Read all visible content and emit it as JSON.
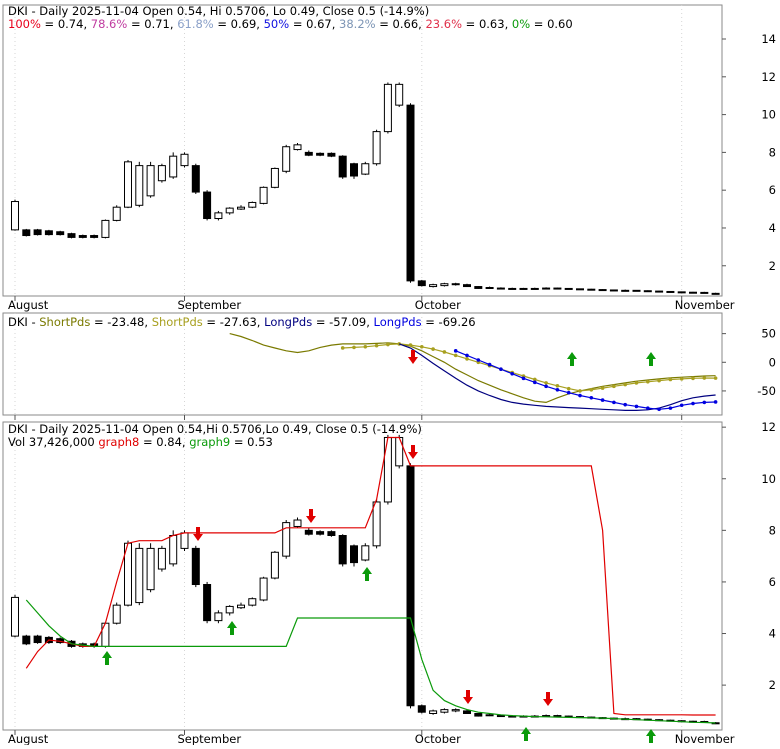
{
  "chart_data": {
    "type": "candlestick",
    "header": "DKI - Daily 2025-11-04 Open 0.54, Hi 0.5706, Lo 0.49, Close 0.5 (-14.9%)",
    "fib_header": [
      {
        "text": "100%",
        "color": "#e8001c"
      },
      {
        "text": " = 0.74, "
      },
      {
        "text": "78.6%",
        "color": "#c03ca0"
      },
      {
        "text": " = 0.71, "
      },
      {
        "text": "61.8%",
        "color": "#8aa0c8"
      },
      {
        "text": " = 0.69, "
      },
      {
        "text": "50%",
        "color": "#1010e0"
      },
      {
        "text": " = 0.67, "
      },
      {
        "text": "38.2%",
        "color": "#7d95b5"
      },
      {
        "text": " = 0.66, "
      },
      {
        "text": "23.6%",
        "color": "#e0304a"
      },
      {
        "text": " = 0.63, "
      },
      {
        "text": "0%",
        "color": "#0a9a0a"
      },
      {
        "text": " = 0.60"
      }
    ],
    "categories": [
      "August",
      null,
      null,
      null,
      null,
      null,
      null,
      null,
      null,
      null,
      null,
      null,
      null,
      null,
      null,
      "September",
      null,
      null,
      null,
      null,
      null,
      null,
      null,
      null,
      null,
      null,
      null,
      null,
      null,
      null,
      null,
      null,
      null,
      null,
      null,
      null,
      "October",
      null,
      null,
      null,
      null,
      null,
      null,
      null,
      null,
      null,
      null,
      null,
      null,
      null,
      null,
      null,
      null,
      null,
      null,
      null,
      null,
      null,
      null,
      "November",
      null,
      null,
      null
    ],
    "open": [
      3.9,
      3.9,
      3.9,
      3.85,
      3.8,
      3.7,
      3.6,
      3.6,
      3.5,
      4.4,
      5.1,
      5.2,
      5.7,
      6.5,
      6.7,
      7.3,
      7.3,
      5.9,
      4.5,
      4.8,
      5.0,
      5.1,
      5.3,
      6.15,
      7.0,
      8.15,
      8.0,
      7.95,
      7.95,
      7.8,
      7.4,
      6.85,
      7.4,
      9.1,
      10.5,
      10.5,
      1.2,
      0.9,
      0.95,
      1.0,
      1.0,
      0.9,
      0.85,
      0.82,
      0.8,
      0.8,
      0.78,
      0.8,
      0.82,
      0.8,
      0.78,
      0.76,
      0.74,
      0.72,
      0.7,
      0.7,
      0.68,
      0.66,
      0.64,
      0.62,
      0.6,
      0.58,
      0.54
    ],
    "high": [
      5.5,
      3.95,
      3.95,
      3.9,
      3.85,
      3.75,
      3.65,
      3.65,
      4.45,
      5.2,
      7.6,
      7.5,
      7.5,
      7.4,
      8.0,
      8.0,
      7.4,
      6.0,
      4.9,
      5.1,
      5.2,
      5.4,
      6.2,
      7.2,
      8.4,
      8.5,
      8.1,
      8.0,
      8.0,
      7.85,
      7.45,
      7.5,
      9.2,
      11.7,
      11.7,
      10.6,
      1.25,
      1.05,
      1.1,
      1.1,
      1.05,
      0.92,
      0.9,
      0.86,
      0.84,
      0.83,
      0.84,
      0.86,
      0.85,
      0.82,
      0.8,
      0.78,
      0.76,
      0.74,
      0.74,
      0.72,
      0.7,
      0.68,
      0.66,
      0.64,
      0.62,
      0.62,
      0.5706
    ],
    "low": [
      3.85,
      3.55,
      3.6,
      3.6,
      3.6,
      3.45,
      3.45,
      3.45,
      3.45,
      4.35,
      5.05,
      5.1,
      5.6,
      6.4,
      6.6,
      7.2,
      5.8,
      4.4,
      4.4,
      4.7,
      4.95,
      5.05,
      5.25,
      6.1,
      6.9,
      8.1,
      7.8,
      7.8,
      7.75,
      6.6,
      6.6,
      6.8,
      7.3,
      9.0,
      10.4,
      1.1,
      0.9,
      0.85,
      0.9,
      0.95,
      0.88,
      0.78,
      0.8,
      0.78,
      0.76,
      0.76,
      0.76,
      0.78,
      0.78,
      0.76,
      0.74,
      0.72,
      0.7,
      0.68,
      0.68,
      0.66,
      0.64,
      0.62,
      0.6,
      0.58,
      0.56,
      0.56,
      0.49
    ],
    "close": [
      5.4,
      3.6,
      3.65,
      3.65,
      3.65,
      3.5,
      3.5,
      3.5,
      4.4,
      5.1,
      7.5,
      7.3,
      7.3,
      7.3,
      7.8,
      7.9,
      5.9,
      4.5,
      4.8,
      5.05,
      5.1,
      5.35,
      6.15,
      7.15,
      8.3,
      8.4,
      7.85,
      7.85,
      7.8,
      6.7,
      6.75,
      7.4,
      9.1,
      11.6,
      11.6,
      1.2,
      0.95,
      1.0,
      1.05,
      1.05,
      0.9,
      0.8,
      0.82,
      0.8,
      0.8,
      0.78,
      0.8,
      0.82,
      0.8,
      0.78,
      0.76,
      0.74,
      0.72,
      0.7,
      0.7,
      0.68,
      0.66,
      0.64,
      0.62,
      0.6,
      0.58,
      0.59,
      0.5
    ],
    "ylim": [
      0.4,
      15.8
    ],
    "yticks": [
      2,
      4,
      6,
      8,
      10,
      12,
      14
    ],
    "indicator": {
      "type": "line",
      "header": [
        {
          "text": "DKI - "
        },
        {
          "text": "ShortPds",
          "color": "#7a7a00"
        },
        {
          "text": " = -23.48, "
        },
        {
          "text": "ShortPds",
          "color": "#a8a020"
        },
        {
          "text": " = -27.63, "
        },
        {
          "text": "LongPds",
          "color": "#000080"
        },
        {
          "text": " = -57.09, "
        },
        {
          "text": "LongPds",
          "color": "#0000e0"
        },
        {
          "text": " = -69.26"
        }
      ],
      "ylim": [
        -92,
        86
      ],
      "yticks": [
        50,
        0,
        -50
      ],
      "series": [
        {
          "color": "#7a7a00",
          "style": "solid",
          "values": [
            null,
            null,
            null,
            null,
            null,
            null,
            null,
            null,
            null,
            null,
            null,
            null,
            null,
            null,
            null,
            null,
            null,
            null,
            null,
            50,
            45,
            38,
            30,
            25,
            20,
            17,
            20,
            26,
            30,
            32,
            32,
            32,
            33,
            34,
            32,
            28,
            20,
            10,
            0,
            -12,
            -22,
            -32,
            -40,
            -48,
            -55,
            -62,
            -68,
            -70,
            -62,
            -55,
            -50,
            -46,
            -42,
            -39,
            -36,
            -33,
            -31,
            -29,
            -27,
            -26,
            -25,
            -24,
            -23.48
          ]
        },
        {
          "color": "#a8a020",
          "style": "dotted",
          "values": [
            null,
            null,
            null,
            null,
            null,
            null,
            null,
            null,
            null,
            null,
            null,
            null,
            null,
            null,
            null,
            null,
            null,
            null,
            null,
            null,
            null,
            null,
            null,
            null,
            null,
            null,
            null,
            null,
            null,
            25,
            26,
            27,
            29,
            31,
            32,
            30,
            27,
            23,
            18,
            12,
            6,
            0,
            -6,
            -12,
            -18,
            -24,
            -30,
            -36,
            -41,
            -46,
            -50,
            -48,
            -45,
            -42,
            -39,
            -36,
            -34,
            -32,
            -30,
            -29,
            -28,
            -27.5,
            -27.63
          ]
        },
        {
          "color": "#000080",
          "style": "solid",
          "values": [
            null,
            null,
            null,
            null,
            null,
            null,
            null,
            null,
            null,
            null,
            null,
            null,
            null,
            null,
            null,
            null,
            null,
            null,
            null,
            null,
            null,
            null,
            null,
            null,
            null,
            null,
            null,
            null,
            null,
            null,
            null,
            null,
            null,
            null,
            32,
            25,
            12,
            -2,
            -15,
            -28,
            -40,
            -50,
            -58,
            -65,
            -70,
            -73,
            -75,
            -77,
            -78,
            -79,
            -80,
            -81,
            -82,
            -83,
            -84,
            -84,
            -83,
            -80,
            -74,
            -67,
            -62,
            -59,
            -57.09
          ]
        },
        {
          "color": "#0000e0",
          "style": "dotted",
          "values": [
            null,
            null,
            null,
            null,
            null,
            null,
            null,
            null,
            null,
            null,
            null,
            null,
            null,
            null,
            null,
            null,
            null,
            null,
            null,
            null,
            null,
            null,
            null,
            null,
            null,
            null,
            null,
            null,
            null,
            null,
            null,
            null,
            null,
            null,
            null,
            null,
            null,
            null,
            null,
            20,
            12,
            4,
            -4,
            -12,
            -20,
            -28,
            -35,
            -42,
            -48,
            -53,
            -58,
            -62,
            -66,
            -70,
            -74,
            -77,
            -80,
            -82,
            -80,
            -75,
            -72,
            -70,
            -69.26
          ]
        }
      ]
    },
    "signal": {
      "type": "candlestick",
      "header": "DKI - Daily 2025-11-04 Open 0.54,Hi 0.5706,Lo 0.49, Close 0.5 (-14.9%)",
      "subheader": [
        {
          "text": "Vol 37,426,000 "
        },
        {
          "text": "graph8",
          "color": "#e00000"
        },
        {
          "text": " = 0.84, "
        },
        {
          "text": "graph9",
          "color": "#0a9a0a"
        },
        {
          "text": " = 0.53"
        }
      ],
      "ylim": [
        0.26,
        12.2
      ],
      "yticks": [
        2,
        4,
        6,
        8,
        10,
        12
      ],
      "series": [
        {
          "color": "#e00000",
          "values": [
            null,
            2.65,
            3.3,
            3.75,
            3.7,
            3.6,
            3.5,
            3.5,
            4.4,
            6.0,
            7.5,
            7.6,
            7.6,
            7.6,
            7.8,
            7.9,
            7.9,
            7.9,
            7.9,
            7.9,
            7.9,
            7.9,
            7.9,
            7.9,
            8.1,
            8.1,
            8.1,
            8.1,
            8.1,
            8.1,
            8.1,
            8.1,
            9.2,
            11.6,
            11.6,
            10.5,
            10.5,
            10.5,
            10.5,
            10.5,
            10.5,
            10.5,
            10.5,
            10.5,
            10.5,
            10.5,
            10.5,
            10.5,
            10.5,
            10.5,
            10.5,
            10.5,
            8.0,
            0.9,
            0.85,
            0.85,
            0.85,
            0.85,
            0.85,
            0.85,
            0.84,
            0.84,
            0.84
          ]
        },
        {
          "color": "#0a9a0a",
          "values": [
            null,
            5.3,
            4.8,
            4.3,
            3.9,
            3.6,
            3.55,
            3.5,
            3.5,
            3.5,
            3.5,
            3.5,
            3.5,
            3.5,
            3.5,
            3.5,
            3.5,
            3.5,
            3.5,
            3.5,
            3.5,
            3.5,
            3.5,
            3.5,
            3.5,
            4.6,
            4.6,
            4.6,
            4.6,
            4.6,
            4.6,
            4.6,
            4.6,
            4.6,
            4.6,
            4.6,
            3.0,
            1.8,
            1.4,
            1.2,
            1.05,
            0.95,
            0.9,
            0.85,
            0.82,
            0.8,
            0.78,
            0.77,
            0.76,
            0.75,
            0.74,
            0.73,
            0.72,
            0.7,
            0.68,
            0.66,
            0.64,
            0.62,
            0.6,
            0.58,
            0.56,
            0.55,
            0.53
          ]
        }
      ]
    }
  }
}
